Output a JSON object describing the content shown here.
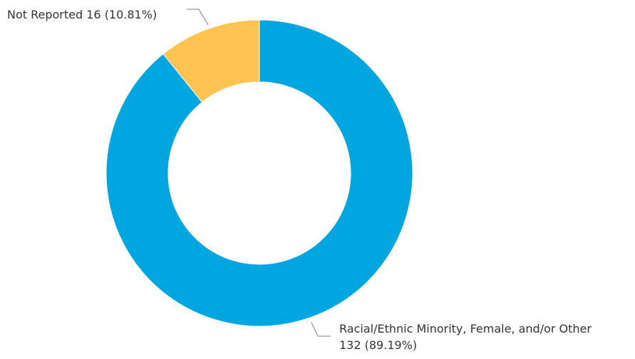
{
  "chart_data": {
    "type": "pie",
    "donut": true,
    "start_angle_deg": 0,
    "direction": "clockwise",
    "slices": [
      {
        "label": "Racial/Ethnic Minority, Female, and/or Other",
        "value": 132,
        "percent": "89.19%",
        "color": "#00A6E0"
      },
      {
        "label": "Not Reported",
        "value": 16,
        "percent": "10.81%",
        "color": "#FFC34F"
      }
    ],
    "title": "",
    "legend": "none"
  },
  "labels": {
    "not_reported": "Not Reported 16 (10.81%)",
    "minority_line1": "Racial/Ethnic Minority, Female, and/or Other",
    "minority_line2": "132 (89.19%)"
  }
}
